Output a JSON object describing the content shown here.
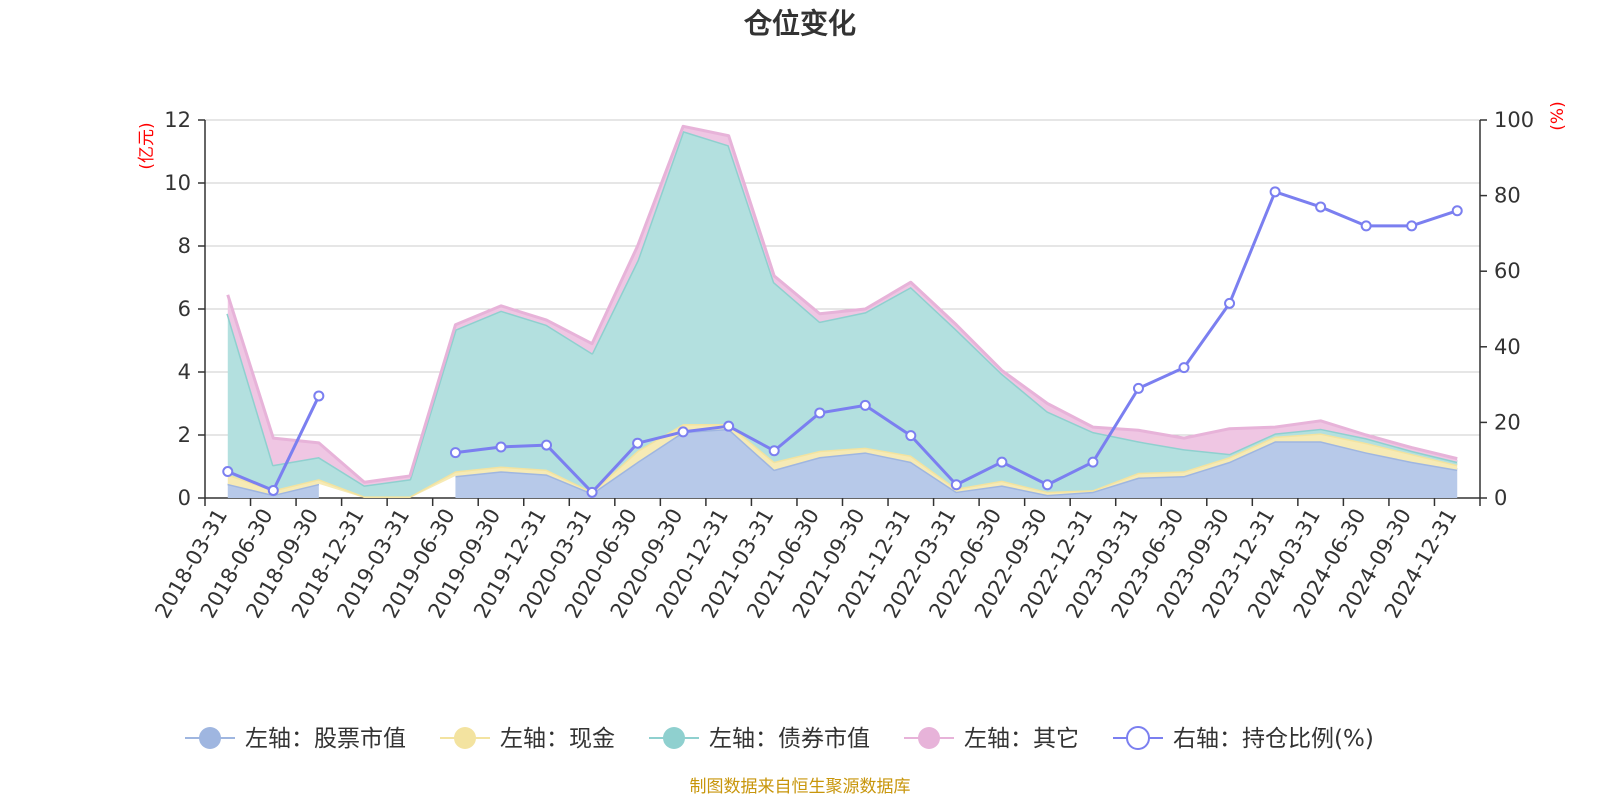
{
  "chart_data": {
    "type": "area",
    "title": "仓位变化",
    "source_note": "制图数据来自恒生聚源数据库",
    "left_axis": {
      "unit": "(亿元)",
      "range": [
        0,
        12
      ],
      "ticks": [
        "0",
        "2",
        "4",
        "6",
        "8",
        "10",
        "12"
      ]
    },
    "right_axis": {
      "unit": "(%)",
      "range": [
        0,
        100
      ],
      "ticks": [
        "0",
        "20",
        "40",
        "60",
        "80",
        "100"
      ]
    },
    "categories": [
      "2018-03-31",
      "2018-06-30",
      "2018-09-30",
      "2018-12-31",
      "2019-03-31",
      "2019-06-30",
      "2019-09-30",
      "2019-12-31",
      "2020-03-31",
      "2020-06-30",
      "2020-09-30",
      "2020-12-31",
      "2021-03-31",
      "2021-06-30",
      "2021-09-30",
      "2021-12-31",
      "2022-03-31",
      "2022-06-30",
      "2022-09-30",
      "2022-12-31",
      "2023-03-31",
      "2023-06-30",
      "2023-09-30",
      "2023-12-31",
      "2024-03-31",
      "2024-06-30",
      "2024-09-30",
      "2024-12-31"
    ],
    "series": [
      {
        "name": "左轴：股票市值",
        "axis": "left",
        "stack": true,
        "color": "#9fb6e0",
        "fill": "#b7c9e9",
        "values": [
          0.45,
          0.1,
          0.45,
          null,
          null,
          0.7,
          0.85,
          0.75,
          0.15,
          1.15,
          2.1,
          2.2,
          0.9,
          1.3,
          1.45,
          1.15,
          0.2,
          0.4,
          0.1,
          0.2,
          0.65,
          0.7,
          1.15,
          1.8,
          1.8,
          1.45,
          1.15,
          0.9
        ]
      },
      {
        "name": "左轴：现金",
        "axis": "left",
        "stack": true,
        "color": "#f3e3a0",
        "fill": "#f6eab5",
        "values": [
          0.3,
          0.15,
          0.15,
          0.05,
          0.05,
          0.15,
          0.15,
          0.15,
          0.05,
          0.35,
          0.25,
          0.15,
          0.25,
          0.2,
          0.15,
          0.2,
          0.1,
          0.15,
          0.1,
          0.05,
          0.15,
          0.15,
          0.15,
          0.15,
          0.25,
          0.3,
          0.25,
          0.15
        ]
      },
      {
        "name": "左轴：债券市值",
        "axis": "left",
        "stack": true,
        "color": "#8fd0cf",
        "fill": "#b3e0df",
        "values": [
          5.1,
          0.8,
          0.7,
          0.35,
          0.55,
          4.5,
          4.95,
          4.6,
          4.4,
          6.05,
          9.3,
          8.85,
          5.7,
          4.1,
          4.3,
          5.35,
          5.05,
          3.4,
          2.55,
          1.85,
          1.0,
          0.7,
          0.1,
          0.1,
          0.15,
          0.15,
          0.1,
          0.1
        ]
      },
      {
        "name": "左轴：其它",
        "axis": "left",
        "stack": true,
        "color": "#e7b3d9",
        "fill": "#efc6e3",
        "values": [
          0.6,
          0.85,
          0.45,
          0.1,
          0.1,
          0.15,
          0.15,
          0.15,
          0.3,
          0.45,
          0.15,
          0.3,
          0.2,
          0.25,
          0.1,
          0.15,
          0.15,
          0.1,
          0.25,
          0.15,
          0.35,
          0.35,
          0.8,
          0.2,
          0.25,
          0.1,
          0.1,
          0.1
        ]
      },
      {
        "name": "右轴：持仓比例(%)",
        "axis": "right",
        "stack": false,
        "color": "#7b7ff0",
        "values": [
          7,
          2,
          27,
          null,
          null,
          12,
          13.5,
          14,
          1.5,
          14.5,
          17.5,
          19,
          12.5,
          22.5,
          24.5,
          16.5,
          3.5,
          9.5,
          3.5,
          9.5,
          29,
          34.5,
          51.5,
          81,
          77,
          72,
          72,
          76
        ]
      }
    ],
    "legend_position": "bottom"
  }
}
